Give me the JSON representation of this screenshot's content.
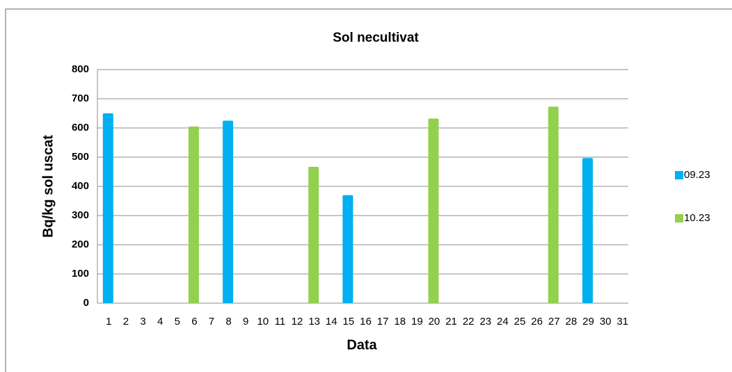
{
  "chart_data": {
    "type": "bar",
    "title": "Sol necultivat",
    "x_label": "Data",
    "y_label": "Bq/kg sol uscat",
    "categories": [
      "1",
      "2",
      "3",
      "4",
      "5",
      "6",
      "7",
      "8",
      "9",
      "10",
      "11",
      "12",
      "13",
      "14",
      "15",
      "16",
      "17",
      "18",
      "19",
      "20",
      "21",
      "22",
      "23",
      "24",
      "25",
      "26",
      "27",
      "28",
      "29",
      "30",
      "31"
    ],
    "series": [
      {
        "name": "09.23",
        "color": "#00b0f0",
        "values": [
          650,
          null,
          null,
          null,
          null,
          null,
          null,
          625,
          null,
          null,
          null,
          null,
          null,
          null,
          370,
          null,
          null,
          null,
          null,
          null,
          null,
          null,
          null,
          null,
          null,
          null,
          null,
          null,
          497,
          null,
          null
        ]
      },
      {
        "name": "10.23",
        "color": "#92d050",
        "values": [
          null,
          null,
          null,
          null,
          null,
          605,
          null,
          null,
          null,
          null,
          null,
          null,
          467,
          null,
          null,
          null,
          null,
          null,
          null,
          632,
          null,
          null,
          null,
          null,
          null,
          null,
          673,
          null,
          null,
          null,
          null
        ]
      }
    ],
    "ylim": [
      0,
      800
    ],
    "yticks": [
      0,
      100,
      200,
      300,
      400,
      500,
      600,
      700,
      800
    ],
    "grid": true,
    "legend": "right"
  }
}
